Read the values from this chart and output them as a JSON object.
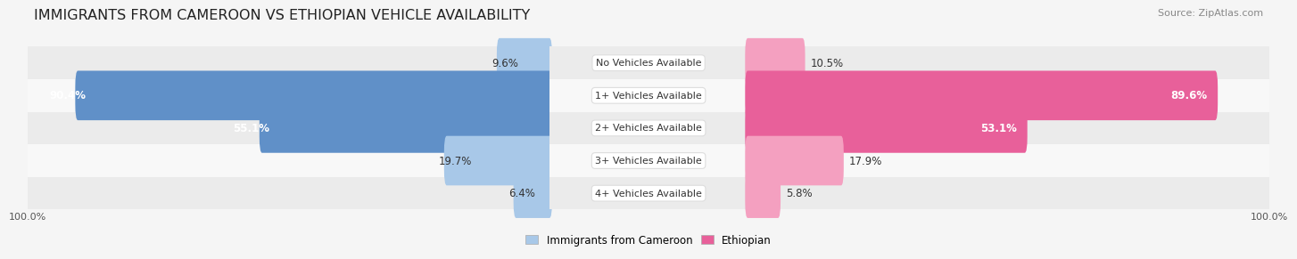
{
  "title": "IMMIGRANTS FROM CAMEROON VS ETHIOPIAN VEHICLE AVAILABILITY",
  "source": "Source: ZipAtlas.com",
  "categories": [
    "No Vehicles Available",
    "1+ Vehicles Available",
    "2+ Vehicles Available",
    "3+ Vehicles Available",
    "4+ Vehicles Available"
  ],
  "cameroon_values": [
    9.6,
    90.4,
    55.1,
    19.7,
    6.4
  ],
  "ethiopian_values": [
    10.5,
    89.6,
    53.1,
    17.9,
    5.8
  ],
  "cameroon_color": "#a8c8e8",
  "ethiopian_color": "#f4a0c0",
  "ethiopian_color_large": "#e8609a",
  "cameroon_color_large": "#6090c8",
  "bg_color": "#f5f5f5",
  "row_colors": [
    "#ebebeb",
    "#f8f8f8"
  ],
  "max_value": 100.0,
  "legend_label_cameroon": "Immigrants from Cameroon",
  "legend_label_ethiopian": "Ethiopian",
  "title_fontsize": 11.5,
  "label_fontsize": 8.5,
  "source_fontsize": 8,
  "cat_label_fontsize": 8,
  "bottom_tick_label": "100.0%"
}
